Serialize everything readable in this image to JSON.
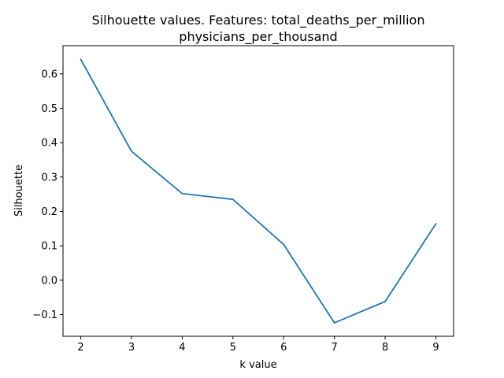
{
  "chart_data": {
    "type": "line",
    "title_line1": "Silhouette values. Features:  total_deaths_per_million",
    "title_line2": "physicians_per_thousand",
    "xlabel": "k value",
    "ylabel": "Silhouette",
    "x": [
      2,
      3,
      4,
      5,
      6,
      7,
      8,
      9
    ],
    "series": [
      {
        "values": [
          0.642,
          0.375,
          0.252,
          0.235,
          0.104,
          -0.124,
          -0.062,
          0.164
        ]
      }
    ],
    "xlim": [
      1.65,
      9.35
    ],
    "ylim": [
      -0.163,
      0.682
    ],
    "xticks": [
      2,
      3,
      4,
      5,
      6,
      7,
      8,
      9
    ],
    "yticks": [
      -0.1,
      0.0,
      0.1,
      0.2,
      0.3,
      0.4,
      0.5,
      0.6
    ],
    "ytick_labels": [
      "−0.1",
      "0.0",
      "0.1",
      "0.2",
      "0.3",
      "0.4",
      "0.5",
      "0.6"
    ],
    "line_color": "#1f77b4",
    "grid": false,
    "legend": "none"
  }
}
